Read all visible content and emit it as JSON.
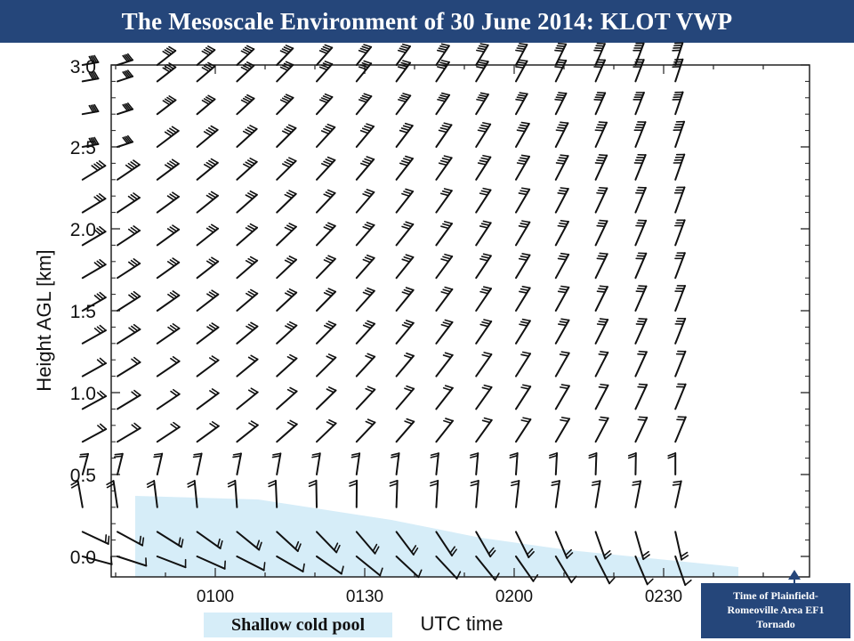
{
  "slide": {
    "title": "The Mesoscale Environment of 30 June 2014:  KLOT VWP",
    "cold_pool_label": "Shallow cold pool",
    "tornado_note": [
      "Time of  Plainfield-",
      "Romeoville Area EF1",
      "Tornado"
    ],
    "colors": {
      "title_bar": "#25467a",
      "cold_pool": "#d6edf8",
      "barb": "#111111"
    }
  },
  "chart_data": {
    "type": "wind-barb time-height plot",
    "xlabel": "UTC time",
    "ylabel": "Height AGL [km]",
    "x_ticks": [
      "0100",
      "0130",
      "0200",
      "0230"
    ],
    "y_ticks": [
      "0.0",
      "0.5",
      "1.0",
      "1.5",
      "2.0",
      "2.5",
      "3.0"
    ],
    "ylim": [
      -0.1,
      3.0
    ],
    "heights_km": [
      0.0,
      0.15,
      0.3,
      0.5,
      0.7,
      0.9,
      1.1,
      1.3,
      1.5,
      1.7,
      1.9,
      2.1,
      2.3,
      2.5,
      2.7,
      2.9,
      3.0
    ],
    "times_min_after_0030": [
      3,
      10,
      18,
      26,
      34,
      42,
      50,
      58,
      66,
      74,
      82,
      90,
      98,
      106,
      114,
      122
    ],
    "tornado_time_min_after_0030": 128,
    "annotations": [
      "Shallow cold pool",
      "Time of Plainfield-Romeoville Area EF1 Tornado"
    ]
  }
}
